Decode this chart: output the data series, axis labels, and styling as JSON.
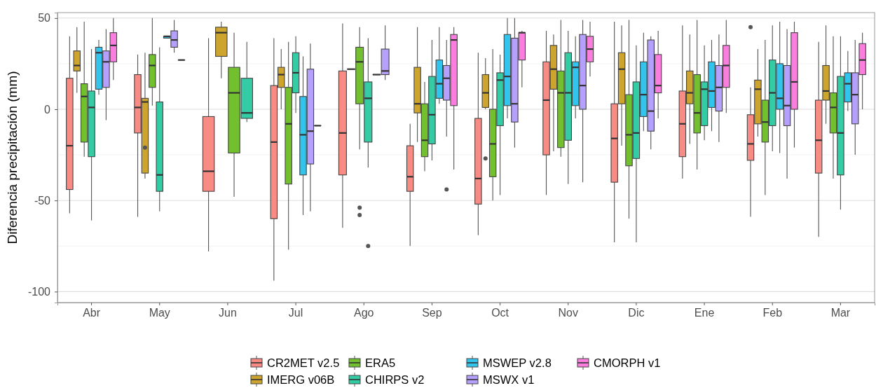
{
  "chart_data": {
    "type": "box",
    "ylabel": "Diferencia precipitación (mm)",
    "categories": [
      "Abr",
      "May",
      "Jun",
      "Jul",
      "Ago",
      "Sep",
      "Oct",
      "Nov",
      "Dic",
      "Ene",
      "Feb",
      "Mar"
    ],
    "ylim": [
      -106,
      53
    ],
    "yticks": [
      50,
      0,
      -50,
      -100
    ],
    "grid": "y",
    "legend": "bottom",
    "series": [
      {
        "name": "CR2MET v2.5",
        "color": "#f98b85",
        "boxes": [
          {
            "low": -57,
            "q1": -44,
            "median": -20,
            "q3": 17,
            "high": 40
          },
          {
            "low": -59,
            "q1": -13,
            "median": 1,
            "q3": 19,
            "high": 30
          },
          {
            "low": -78,
            "q1": -45,
            "median": -34,
            "q3": -4,
            "high": 39
          },
          {
            "low": -94,
            "q1": -60,
            "median": -18,
            "q3": 13,
            "high": 39
          },
          {
            "low": -65,
            "q1": -36,
            "median": -13,
            "q3": 21,
            "high": 47
          },
          {
            "low": -75,
            "q1": -45,
            "median": -37,
            "q3": -20,
            "high": -8
          },
          {
            "low": -69,
            "q1": -52,
            "median": -38,
            "q3": -5,
            "high": 31
          },
          {
            "low": -47,
            "q1": -25,
            "median": 5,
            "q3": 26,
            "high": 43
          },
          {
            "low": -73,
            "q1": -40,
            "median": -16,
            "q3": 3,
            "high": 48
          },
          {
            "low": -38,
            "q1": -26,
            "median": -8,
            "q3": 10,
            "high": 46
          },
          {
            "low": -59,
            "q1": -28,
            "median": -19,
            "q3": -3,
            "high": 12,
            "outliers": [
              45
            ]
          },
          {
            "low": -70,
            "q1": -35,
            "median": -17,
            "q3": 5,
            "high": 37
          }
        ]
      },
      {
        "name": "IMERG v06B",
        "color": "#cca42e",
        "boxes": [
          {
            "low": 9,
            "q1": 21,
            "median": 24,
            "q3": 32,
            "high": 45
          },
          {
            "low": -38,
            "q1": -35,
            "median": 4,
            "q3": 6,
            "high": 31,
            "outliers": [
              -21
            ]
          },
          {
            "low": 17,
            "q1": 29,
            "median": 42,
            "q3": 45,
            "high": 48
          },
          {
            "low": 0,
            "q1": 12,
            "median": 19,
            "q3": 23,
            "high": 33
          },
          {
            "low": 22,
            "q1": 22,
            "median": 22,
            "q3": 22,
            "high": 22
          },
          {
            "low": -18,
            "q1": -2,
            "median": 3,
            "q3": 23,
            "high": 45
          },
          {
            "low": 0,
            "q1": 1,
            "median": 9,
            "q3": 19,
            "high": 28,
            "outliers": [
              -27
            ]
          },
          {
            "low": -23,
            "q1": 11,
            "median": 22,
            "q3": 35,
            "high": 41
          },
          {
            "low": -20,
            "q1": 3,
            "median": 22,
            "q3": 31,
            "high": 46
          },
          {
            "low": -19,
            "q1": 3,
            "median": 9,
            "q3": 21,
            "high": 41
          },
          {
            "low": -15,
            "q1": -8,
            "median": 11,
            "q3": 16,
            "high": 33
          },
          {
            "low": -8,
            "q1": 5,
            "median": 10,
            "q3": 24,
            "high": 46
          }
        ]
      },
      {
        "name": "ERA5",
        "color": "#72c02e",
        "boxes": [
          {
            "low": -26,
            "q1": -18,
            "median": 7,
            "q3": 14,
            "high": 48
          },
          {
            "low": 2,
            "q1": 12,
            "median": 24,
            "q3": 30,
            "high": 50
          },
          {
            "low": -48,
            "q1": -24,
            "median": 9,
            "q3": 23,
            "high": 42
          },
          {
            "low": -77,
            "q1": -41,
            "median": -8,
            "q3": 12,
            "high": 37
          },
          {
            "low": -22,
            "q1": 3,
            "median": 26,
            "q3": 34,
            "high": 45,
            "outliers": [
              -54,
              -58
            ]
          },
          {
            "low": -34,
            "q1": -26,
            "median": -17,
            "q3": 3,
            "high": 15
          },
          {
            "low": -50,
            "q1": -37,
            "median": -19,
            "q3": 0,
            "high": 33
          },
          {
            "low": -26,
            "q1": -21,
            "median": 9,
            "q3": 21,
            "high": 49
          },
          {
            "low": -60,
            "q1": -31,
            "median": -14,
            "q3": 8,
            "high": 49
          },
          {
            "low": -33,
            "q1": -13,
            "median": -2,
            "q3": 19,
            "high": 49
          },
          {
            "low": -47,
            "q1": -18,
            "median": -7,
            "q3": 5,
            "high": 38
          },
          {
            "low": -38,
            "q1": -13,
            "median": 1,
            "q3": 9,
            "high": 40
          }
        ]
      },
      {
        "name": "CHIRPS v2",
        "color": "#33cca4",
        "boxes": [
          {
            "low": -61,
            "q1": -26,
            "median": 1,
            "q3": 10,
            "high": 33
          },
          {
            "low": -56,
            "q1": -45,
            "median": -36,
            "q3": 4,
            "high": 34
          },
          {
            "low": -7,
            "q1": -5,
            "median": -2,
            "q3": 17,
            "high": 37
          },
          {
            "low": -2,
            "q1": 9,
            "median": 20,
            "q3": 31,
            "high": 40
          },
          {
            "low": -32,
            "q1": -18,
            "median": 6,
            "q3": 15,
            "high": 39,
            "outliers": [
              -75
            ]
          },
          {
            "low": -28,
            "q1": -19,
            "median": -3,
            "q3": 18,
            "high": 38
          },
          {
            "low": -47,
            "q1": -9,
            "median": 16,
            "q3": 20,
            "high": 30
          },
          {
            "low": -41,
            "q1": -17,
            "median": 9,
            "q3": 31,
            "high": 43
          },
          {
            "low": -73,
            "q1": -27,
            "median": -13,
            "q3": 15,
            "high": 35
          },
          {
            "low": -17,
            "q1": -9,
            "median": 11,
            "q3": 15,
            "high": 35
          },
          {
            "low": -23,
            "q1": -9,
            "median": 9,
            "q3": 27,
            "high": 46
          },
          {
            "low": -55,
            "q1": -36,
            "median": -13,
            "q3": 18,
            "high": 40
          }
        ]
      },
      {
        "name": "MSWEP v2.8",
        "color": "#33c4ee",
        "boxes": [
          {
            "low": 8,
            "q1": 11,
            "median": 31,
            "q3": 34,
            "high": 38
          },
          {
            "low": 39,
            "q1": 39,
            "median": 40,
            "q3": 40,
            "high": 40
          },
          null,
          {
            "low": -58,
            "q1": -36,
            "median": -14,
            "q3": 7,
            "high": 29
          },
          {
            "low": 19,
            "q1": 19,
            "median": 19,
            "q3": 19,
            "high": 19
          },
          {
            "low": 3,
            "q1": 6,
            "median": 14,
            "q3": 27,
            "high": 45
          },
          {
            "low": -5,
            "q1": 2,
            "median": 18,
            "q3": 41,
            "high": 50
          },
          {
            "low": -5,
            "q1": 2,
            "median": 23,
            "q3": 26,
            "high": 40
          },
          {
            "low": -12,
            "q1": -4,
            "median": 8,
            "q3": 26,
            "high": 42
          },
          {
            "low": -12,
            "q1": 1,
            "median": 10,
            "q3": 26,
            "high": 38
          },
          {
            "low": -24,
            "q1": 0,
            "median": 6,
            "q3": 25,
            "high": 48
          },
          {
            "low": -1,
            "q1": 4,
            "median": 14,
            "q3": 20,
            "high": 32
          }
        ]
      },
      {
        "name": "MSWX v1",
        "color": "#b6a0fe",
        "boxes": [
          {
            "low": -6,
            "q1": 12,
            "median": 26,
            "q3": 32,
            "high": 44
          },
          {
            "low": 31,
            "q1": 34,
            "median": 38,
            "q3": 43,
            "high": 49
          },
          null,
          {
            "low": -56,
            "q1": -30,
            "median": -12,
            "q3": 22,
            "high": 36
          },
          {
            "low": 16,
            "q1": 19,
            "median": 21,
            "q3": 33,
            "high": 46
          },
          {
            "low": -15,
            "q1": 5,
            "median": 17,
            "q3": 24,
            "high": 38,
            "outliers": [
              -44
            ]
          },
          {
            "low": -21,
            "q1": -7,
            "median": 3,
            "q3": 39,
            "high": 50
          },
          {
            "low": -40,
            "q1": 0,
            "median": 13,
            "q3": 41,
            "high": 49
          },
          {
            "low": -22,
            "q1": -12,
            "median": -1,
            "q3": 38,
            "high": 40
          },
          {
            "low": -18,
            "q1": -1,
            "median": 12,
            "q3": 24,
            "high": 41
          },
          {
            "low": -38,
            "q1": -9,
            "median": 2,
            "q3": 24,
            "high": 44
          },
          {
            "low": -25,
            "q1": -8,
            "median": 8,
            "q3": 20,
            "high": 38
          }
        ]
      },
      {
        "name": "CMORPH v1",
        "color": "#fb7ede",
        "boxes": [
          {
            "low": 16,
            "q1": 26,
            "median": 35,
            "q3": 42,
            "high": 50
          },
          {
            "low": 27,
            "q1": 27,
            "median": 27,
            "q3": 27,
            "high": 27
          },
          null,
          {
            "low": -9,
            "q1": -9,
            "median": -9,
            "q3": -9,
            "high": -9
          },
          null,
          {
            "low": -33,
            "q1": 2,
            "median": 38,
            "q3": 41,
            "high": 45
          },
          {
            "low": 12,
            "q1": 27,
            "median": 42,
            "q3": 42,
            "high": 43
          },
          {
            "low": 18,
            "q1": 26,
            "median": 33,
            "q3": 40,
            "high": 48
          },
          {
            "low": -5,
            "q1": 9,
            "median": 13,
            "q3": 30,
            "high": 43
          },
          {
            "low": -2,
            "q1": 12,
            "median": 24,
            "q3": 35,
            "high": 49
          },
          {
            "low": -21,
            "q1": 0,
            "median": 15,
            "q3": 42,
            "high": 48
          },
          {
            "low": 0,
            "q1": 19,
            "median": 27,
            "q3": 36,
            "high": 42
          }
        ]
      }
    ]
  }
}
